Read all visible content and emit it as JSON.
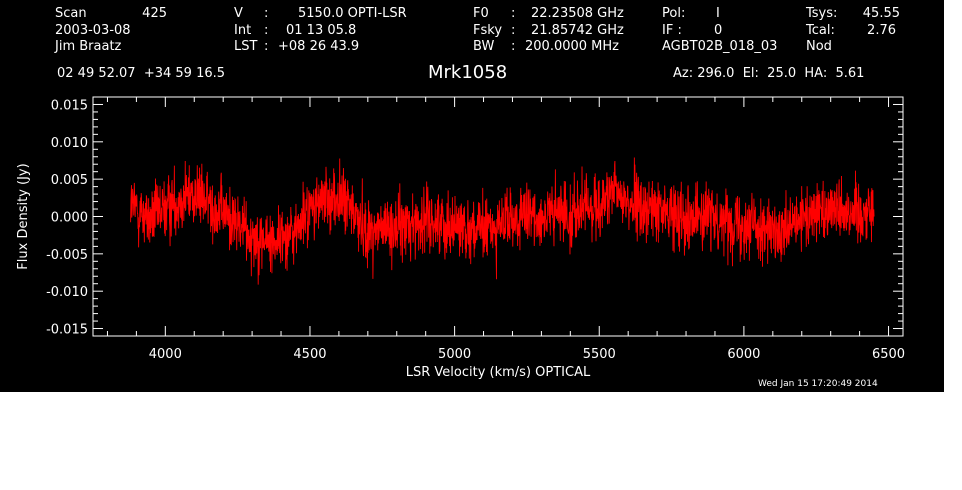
{
  "header": {
    "scan_label": "Scan",
    "scan_value": "425",
    "date": "2003-03-08",
    "observer": "Jim Braatz",
    "v_label": "V",
    "v_colon": ":",
    "v_value": "5150.0 OPTI-LSR",
    "int_label": "Int",
    "int_colon": ":",
    "int_value": "01 13 05.8",
    "lst_label": "LST",
    "lst_colon": ":",
    "lst_value": "+08 26 43.9",
    "f0_label": "F0",
    "f0_colon": ":",
    "f0_value": "22.23508 GHz",
    "fsky_label": "Fsky",
    "fsky_colon": ":",
    "fsky_value": "21.85742 GHz",
    "bw_label": "BW",
    "bw_colon": ":",
    "bw_value": "200.0000 MHz",
    "pol_label": "Pol:",
    "pol_value": "I",
    "if_label": "IF :",
    "if_value": "0",
    "project": "AGBT02B_018_03",
    "tsys_label": "Tsys:",
    "tsys_value": "45.55",
    "tcal_label": "Tcal:",
    "tcal_value": "2.76",
    "mode": "Nod",
    "coords": "02 49 52.07  +34 59 16.5",
    "source": "Mrk1058",
    "az_el_ha": "Az: 296.0  El:  25.0  HA:  5.61",
    "timestamp": "Wed Jan 15 17:20:49 2014"
  },
  "colors": {
    "background": "#000000",
    "foreground": "#ffffff",
    "trace": "#ff0000"
  },
  "chart_data": {
    "type": "line",
    "xlabel": "LSR Velocity (km/s) OPTICAL",
    "ylabel": "Flux Density (Jy)",
    "xlim": [
      3750,
      6550
    ],
    "ylim": [
      -0.016,
      0.016
    ],
    "x_ticks": [
      4000,
      4500,
      5000,
      5500,
      6000,
      6500
    ],
    "x_tick_labels": [
      "4000",
      "4500",
      "5000",
      "5500",
      "6000",
      "6500"
    ],
    "y_ticks": [
      -0.015,
      -0.01,
      -0.005,
      0.0,
      0.005,
      0.01,
      0.015
    ],
    "y_tick_labels": [
      "-0.015",
      "-0.010",
      "-0.005",
      "0.000",
      "0.005",
      "0.010",
      "0.015"
    ],
    "series": [
      {
        "noise_sigma": 0.0028,
        "baseline": {
          "x": [
            3880,
            3950,
            4050,
            4100,
            4200,
            4300,
            4360,
            4450,
            4500,
            4570,
            4620,
            4700,
            4800,
            4900,
            5000,
            5100,
            5200,
            5300,
            5400,
            5500,
            5560,
            5650,
            5750,
            5850,
            5950,
            6050,
            6120,
            6200,
            6300,
            6400,
            6450
          ],
          "y": [
            0.0015,
            -0.0005,
            0.0025,
            0.003,
            0.0005,
            -0.0025,
            -0.0035,
            -0.002,
            0.001,
            0.0025,
            0.002,
            -0.002,
            -0.0015,
            -0.0005,
            -0.001,
            -0.002,
            -0.0005,
            0.0,
            0.0005,
            0.0015,
            0.003,
            0.001,
            0.0005,
            0.0,
            -0.0005,
            -0.001,
            -0.003,
            -0.0005,
            0.0015,
            0.0005,
            0.001
          ]
        }
      }
    ]
  }
}
